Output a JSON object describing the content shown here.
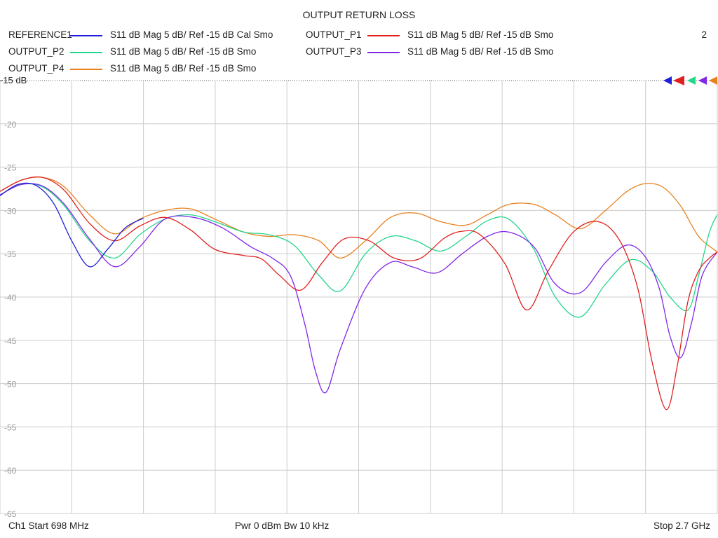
{
  "chart_data": {
    "type": "line",
    "title": "OUTPUT RETURN LOSS",
    "channel_number": "2",
    "ref_label": "-15 dB",
    "footer": {
      "start": "Ch1  Start  698 MHz",
      "middle": "Pwr  0 dBm  Bw  10 kHz",
      "stop": "Stop  2.7 GHz"
    },
    "x_range_ghz": [
      0.698,
      2.7
    ],
    "ylim": [
      -65,
      -15
    ],
    "y_ticks": [
      -20,
      -25,
      -30,
      -35,
      -40,
      -45,
      -50,
      -55,
      -60,
      -65
    ],
    "y_tick_labels": [
      "-20",
      "-25",
      "-30",
      "-35",
      "-40",
      "-45",
      "-50",
      "-55",
      "-60",
      "-65"
    ],
    "grid": true,
    "x_divisions": 10,
    "series": [
      {
        "name": "REFERENCE1",
        "desc": "S11  dB Mag  5 dB/ Ref -15 dB  Cal Smo",
        "color": "#1f1fd6",
        "x": [
          0.698,
          0.748,
          0.798,
          0.848,
          0.898,
          0.948,
          0.998,
          1.048,
          1.098
        ],
        "y": [
          -28.3,
          -27.0,
          -27.1,
          -29.2,
          -33.5,
          -36.5,
          -34.5,
          -32.0,
          -30.9
        ]
      },
      {
        "name": "OUTPUT_P1",
        "desc": "S11  dB Mag  5 dB/ Ref -15 dB  Smo",
        "color": "#e02020",
        "x": [
          0.698,
          0.758,
          0.818,
          0.878,
          0.948,
          1.018,
          1.088,
          1.158,
          1.228,
          1.298,
          1.378,
          1.428,
          1.478,
          1.538,
          1.598,
          1.658,
          1.728,
          1.798,
          1.868,
          1.938,
          1.988,
          2.038,
          2.108,
          2.168,
          2.228,
          2.298,
          2.368,
          2.428,
          2.478,
          2.518,
          2.558,
          2.588,
          2.618,
          2.648,
          2.678,
          2.7
        ],
        "y": [
          -27.8,
          -26.5,
          -26.2,
          -27.7,
          -31.5,
          -33.5,
          -31.8,
          -30.8,
          -32.2,
          -34.5,
          -35.2,
          -35.6,
          -37.5,
          -39.2,
          -36.0,
          -33.3,
          -33.5,
          -35.5,
          -35.6,
          -33.2,
          -32.4,
          -32.8,
          -36.2,
          -41.5,
          -37.0,
          -32.5,
          -31.3,
          -33.5,
          -39.0,
          -47.5,
          -53.0,
          -48.0,
          -40.5,
          -37.0,
          -35.5,
          -34.8
        ]
      },
      {
        "name": "OUTPUT_P2",
        "desc": "S11  dB Mag  5 dB/ Ref -15 dB  Smo",
        "color": "#22d68a",
        "x": [
          0.698,
          0.758,
          0.818,
          0.878,
          0.948,
          1.018,
          1.088,
          1.158,
          1.228,
          1.298,
          1.378,
          1.448,
          1.518,
          1.588,
          1.648,
          1.718,
          1.788,
          1.858,
          1.928,
          1.998,
          2.058,
          2.118,
          2.188,
          2.248,
          2.318,
          2.388,
          2.458,
          2.518,
          2.568,
          2.618,
          2.648,
          2.678,
          2.7
        ],
        "y": [
          -28.2,
          -27.0,
          -27.3,
          -29.5,
          -33.5,
          -35.5,
          -32.8,
          -31.0,
          -30.5,
          -31.3,
          -32.5,
          -32.8,
          -34.0,
          -37.5,
          -39.3,
          -35.0,
          -33.0,
          -33.5,
          -34.7,
          -33.0,
          -31.2,
          -31.0,
          -34.5,
          -40.0,
          -42.3,
          -38.5,
          -35.7,
          -37.0,
          -40.0,
          -41.5,
          -37.5,
          -32.5,
          -30.5
        ]
      },
      {
        "name": "OUTPUT_P3",
        "desc": "S11  dB Mag  5 dB/ Ref -15 dB  Smo",
        "color": "#8028e8",
        "x": [
          0.698,
          0.758,
          0.818,
          0.878,
          0.948,
          1.018,
          1.088,
          1.158,
          1.238,
          1.318,
          1.398,
          1.458,
          1.508,
          1.548,
          1.578,
          1.608,
          1.648,
          1.718,
          1.788,
          1.848,
          1.918,
          1.988,
          2.058,
          2.118,
          2.188,
          2.248,
          2.318,
          2.388,
          2.448,
          2.498,
          2.538,
          2.568,
          2.598,
          2.628,
          2.658,
          2.7
        ],
        "y": [
          -28.2,
          -27.0,
          -27.2,
          -29.3,
          -33.3,
          -36.5,
          -34.2,
          -31.0,
          -30.8,
          -32.0,
          -34.2,
          -35.5,
          -37.5,
          -43.0,
          -48.5,
          -51.0,
          -46.0,
          -39.0,
          -36.0,
          -36.5,
          -37.2,
          -35.0,
          -33.0,
          -32.5,
          -34.2,
          -38.5,
          -39.5,
          -36.0,
          -34.0,
          -35.3,
          -39.0,
          -44.5,
          -47.0,
          -43.0,
          -37.5,
          -34.8
        ]
      },
      {
        "name": "OUTPUT_P4",
        "desc": "S11  dB Mag  5 dB/ Ref -15 dB  Smo",
        "color": "#e8801c",
        "x": [
          0.698,
          0.758,
          0.818,
          0.878,
          0.948,
          1.018,
          1.088,
          1.158,
          1.228,
          1.298,
          1.378,
          1.448,
          1.518,
          1.588,
          1.648,
          1.718,
          1.788,
          1.858,
          1.928,
          1.998,
          2.058,
          2.118,
          2.188,
          2.248,
          2.318,
          2.388,
          2.448,
          2.498,
          2.548,
          2.598,
          2.648,
          2.7
        ],
        "y": [
          -27.8,
          -26.5,
          -26.2,
          -27.3,
          -30.5,
          -32.7,
          -31.0,
          -30.0,
          -29.8,
          -31.0,
          -32.5,
          -33.0,
          -32.8,
          -33.5,
          -35.5,
          -33.5,
          -30.8,
          -30.3,
          -31.3,
          -31.7,
          -30.5,
          -29.3,
          -29.3,
          -30.5,
          -32.1,
          -30.0,
          -27.8,
          -26.9,
          -27.3,
          -29.5,
          -33.0,
          -34.8
        ]
      }
    ]
  }
}
